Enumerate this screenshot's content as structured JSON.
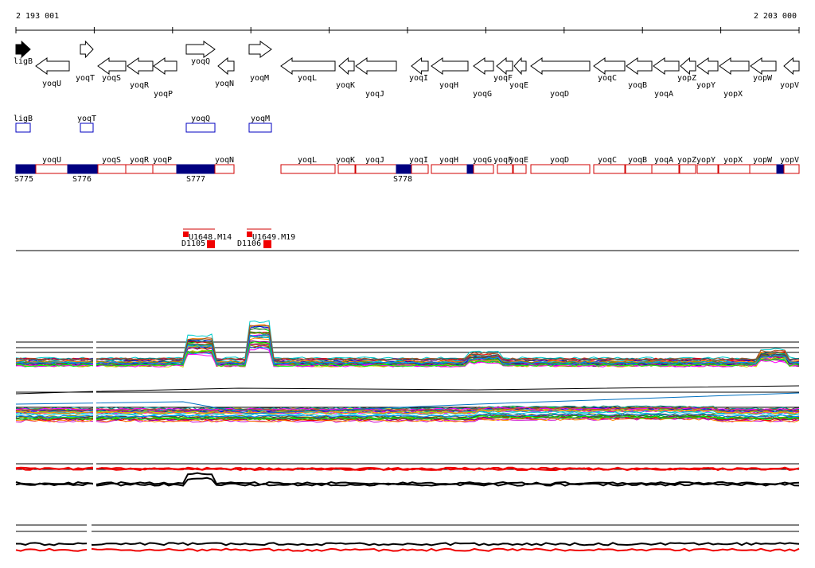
{
  "ruler": {
    "start": "2 193 001",
    "end": "2 203 000"
  },
  "genes": [
    "ligB",
    "yoqU",
    "yoqT",
    "yoqS",
    "yoqR",
    "yoqP",
    "yoqQ",
    "yoqN",
    "yoqM",
    "yoqL",
    "yoqK",
    "yoqJ",
    "yoqI",
    "yoqH",
    "yoqG",
    "yoqF",
    "yoqE",
    "yoqD",
    "yoqC",
    "yoqB",
    "yoqA",
    "yopZ",
    "yopY",
    "yopX",
    "yopW",
    "yopV"
  ],
  "orfs": [
    "ligB",
    "yoqT",
    "yoqQ",
    "yoqM"
  ],
  "segments": [
    "yoqU",
    "yoqS",
    "yoqR",
    "yoqP",
    "yoqN",
    "yoqL",
    "yoqK",
    "yoqJ",
    "yoqI",
    "yoqH",
    "yoqG",
    "yoqF",
    "yoqE",
    "yoqD",
    "yoqC",
    "yoqB",
    "yoqA",
    "yopZ",
    "yopY",
    "yopX",
    "yopW",
    "yopV"
  ],
  "sites": [
    "S775",
    "S776",
    "S777",
    "S778"
  ],
  "probes": [
    "U1648.M14",
    "D1105",
    "U1649.M19",
    "D1106"
  ]
}
